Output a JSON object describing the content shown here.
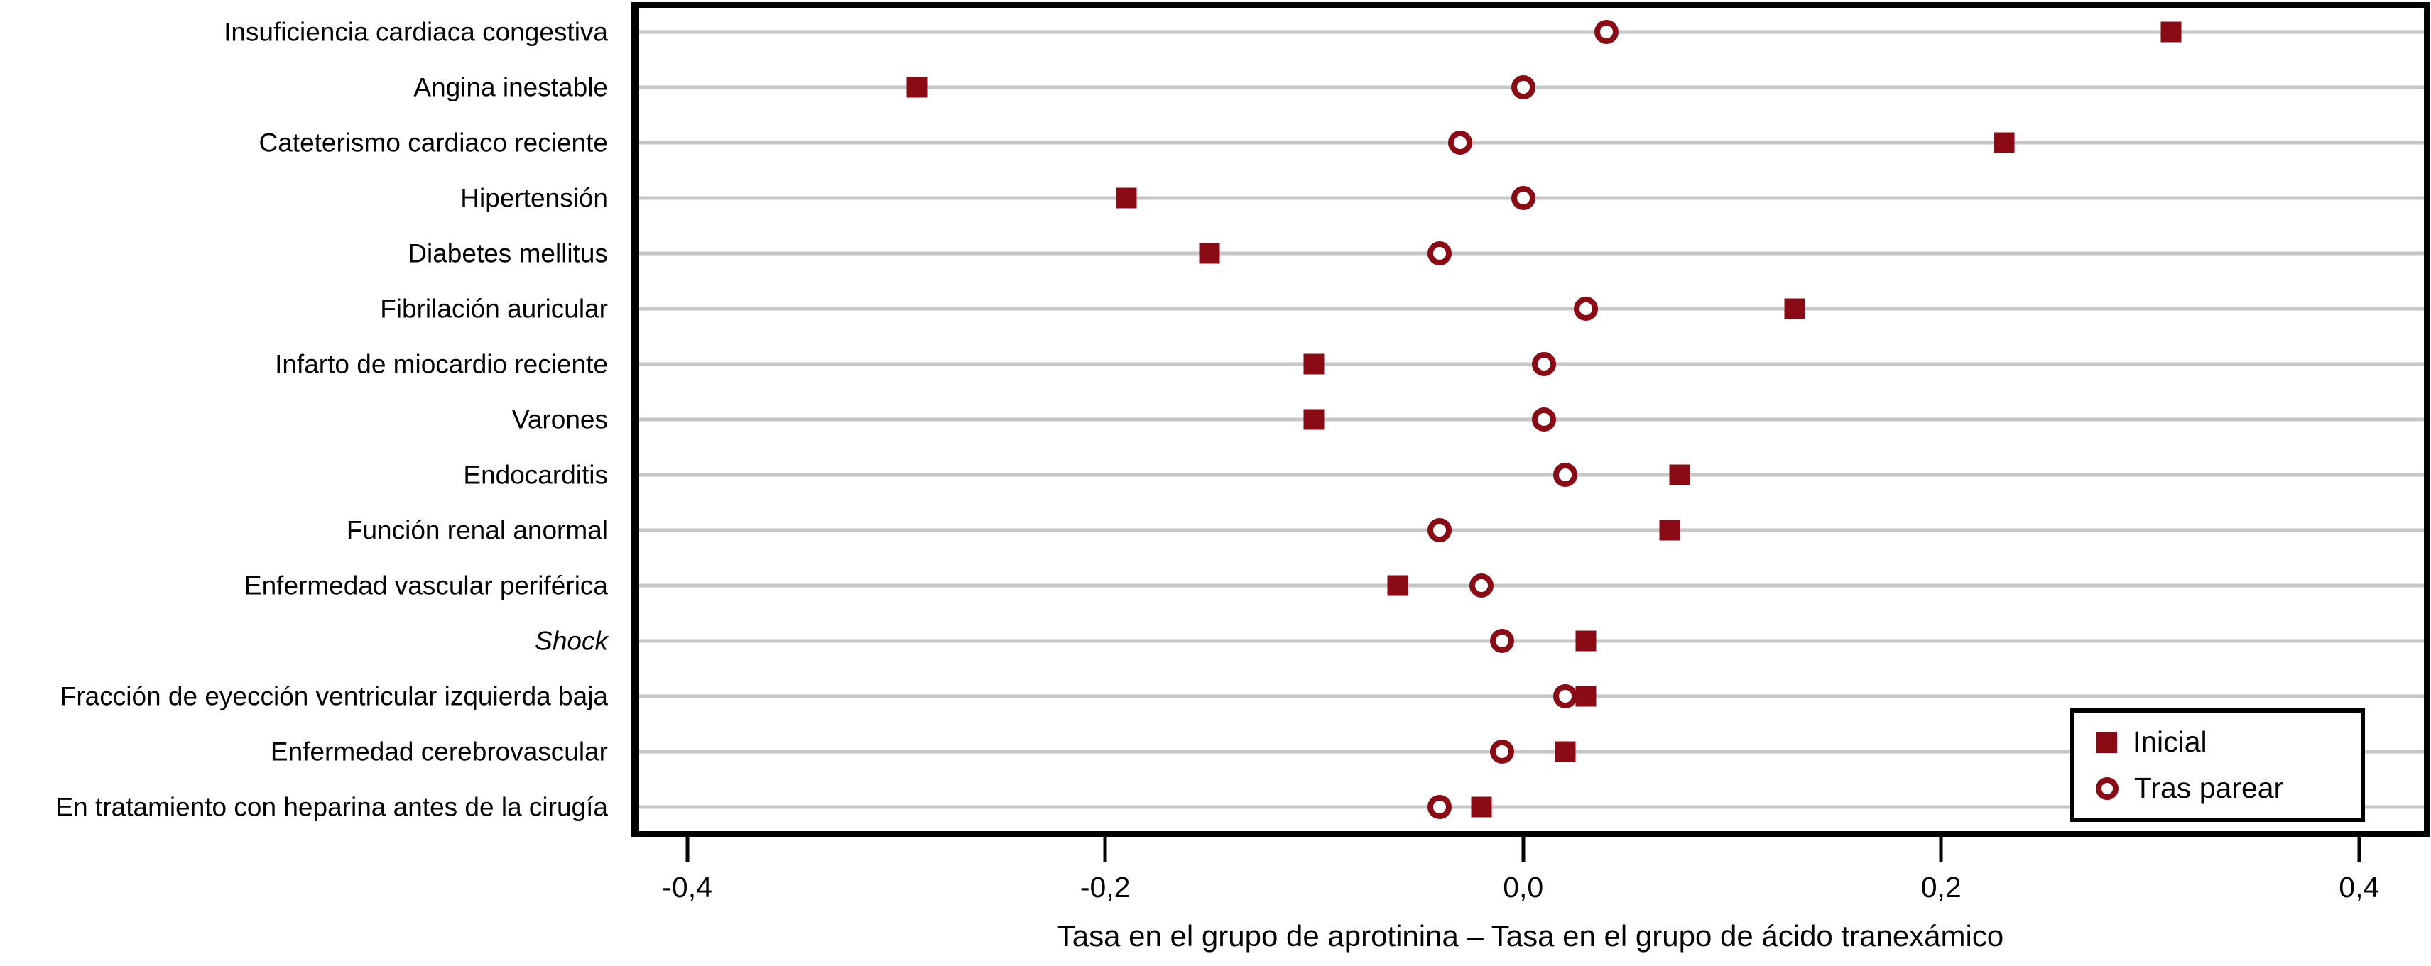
{
  "chart_data": {
    "type": "scatter",
    "title": "",
    "xlabel": "Tasa en el grupo de aprotinina – Tasa en el grupo de ácido tranexámico",
    "ylabel": "",
    "xlim": [
      -0.424,
      0.431
    ],
    "x_ticks": [
      -0.4,
      -0.2,
      0.0,
      0.2,
      0.4
    ],
    "x_tick_labels": [
      "-0,4",
      "-0,2",
      "0,0",
      "0,2",
      "0,4"
    ],
    "grid": "horizontal",
    "zero_line": true,
    "legend_position": "bottom-right",
    "marker_color": "#8b0b15",
    "gridline_color": "#c6c6c6",
    "categories": [
      "Insuficiencia cardiaca congestiva",
      "Angina inestable",
      "Cateterismo cardiaco reciente",
      "Hipertensión",
      "Diabetes mellitus",
      "Fibrilación auricular",
      "Infarto de miocardio reciente",
      "Varones",
      "Endocarditis",
      "Función renal anormal",
      "Enfermedad vascular periférica",
      "Shock",
      "Fracción de eyección ventricular izquierda baja",
      "Enfermedad cerebrovascular",
      "En tratamiento con heparina antes de la cirugía"
    ],
    "italic_categories": [
      "Shock"
    ],
    "series": [
      {
        "name": "Inicial",
        "marker": "filled-square",
        "values": [
          0.31,
          -0.29,
          0.23,
          -0.19,
          -0.15,
          0.13,
          -0.1,
          -0.1,
          0.075,
          0.07,
          -0.06,
          0.03,
          0.03,
          0.02,
          -0.02
        ]
      },
      {
        "name": "Tras parear",
        "marker": "open-circle",
        "values": [
          0.04,
          0.0,
          -0.03,
          0.0,
          -0.04,
          0.03,
          0.01,
          0.01,
          0.02,
          -0.04,
          -0.02,
          -0.01,
          0.02,
          -0.01,
          -0.04
        ]
      }
    ]
  },
  "legend": {
    "items": [
      {
        "label": "Inicial"
      },
      {
        "label": "Tras parear"
      }
    ]
  }
}
